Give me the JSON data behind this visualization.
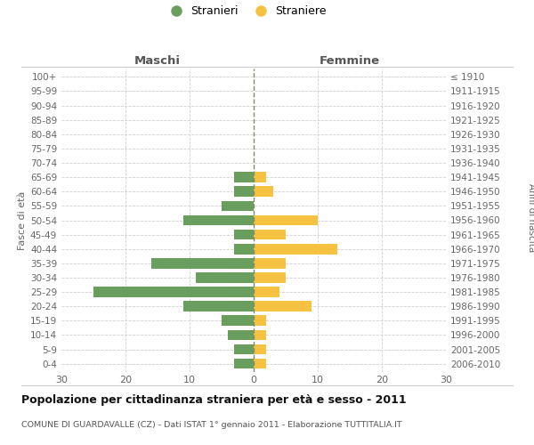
{
  "age_groups": [
    "0-4",
    "5-9",
    "10-14",
    "15-19",
    "20-24",
    "25-29",
    "30-34",
    "35-39",
    "40-44",
    "45-49",
    "50-54",
    "55-59",
    "60-64",
    "65-69",
    "70-74",
    "75-79",
    "80-84",
    "85-89",
    "90-94",
    "95-99",
    "100+"
  ],
  "birth_years": [
    "2006-2010",
    "2001-2005",
    "1996-2000",
    "1991-1995",
    "1986-1990",
    "1981-1985",
    "1976-1980",
    "1971-1975",
    "1966-1970",
    "1961-1965",
    "1956-1960",
    "1951-1955",
    "1946-1950",
    "1941-1945",
    "1936-1940",
    "1931-1935",
    "1926-1930",
    "1921-1925",
    "1916-1920",
    "1911-1915",
    "≤ 1910"
  ],
  "males": [
    3,
    3,
    4,
    5,
    11,
    25,
    9,
    16,
    3,
    3,
    11,
    5,
    3,
    3,
    0,
    0,
    0,
    0,
    0,
    0,
    0
  ],
  "females": [
    2,
    2,
    2,
    2,
    9,
    4,
    5,
    5,
    13,
    5,
    10,
    0,
    3,
    2,
    0,
    0,
    0,
    0,
    0,
    0,
    0
  ],
  "male_color": "#6a9e5e",
  "female_color": "#f5c242",
  "title_main": "Popolazione per cittadinanza straniera per età e sesso - 2011",
  "title_sub": "COMUNE DI GUARDAVALLE (CZ) - Dati ISTAT 1° gennaio 2011 - Elaborazione TUTTITALIA.IT",
  "legend_male": "Stranieri",
  "legend_female": "Straniere",
  "xlabel_left": "Maschi",
  "xlabel_right": "Femmine",
  "ylabel_left": "Fasce di età",
  "ylabel_right": "Anni di nascita",
  "xlim": 30,
  "background_color": "#ffffff",
  "grid_color": "#d0d0d0"
}
